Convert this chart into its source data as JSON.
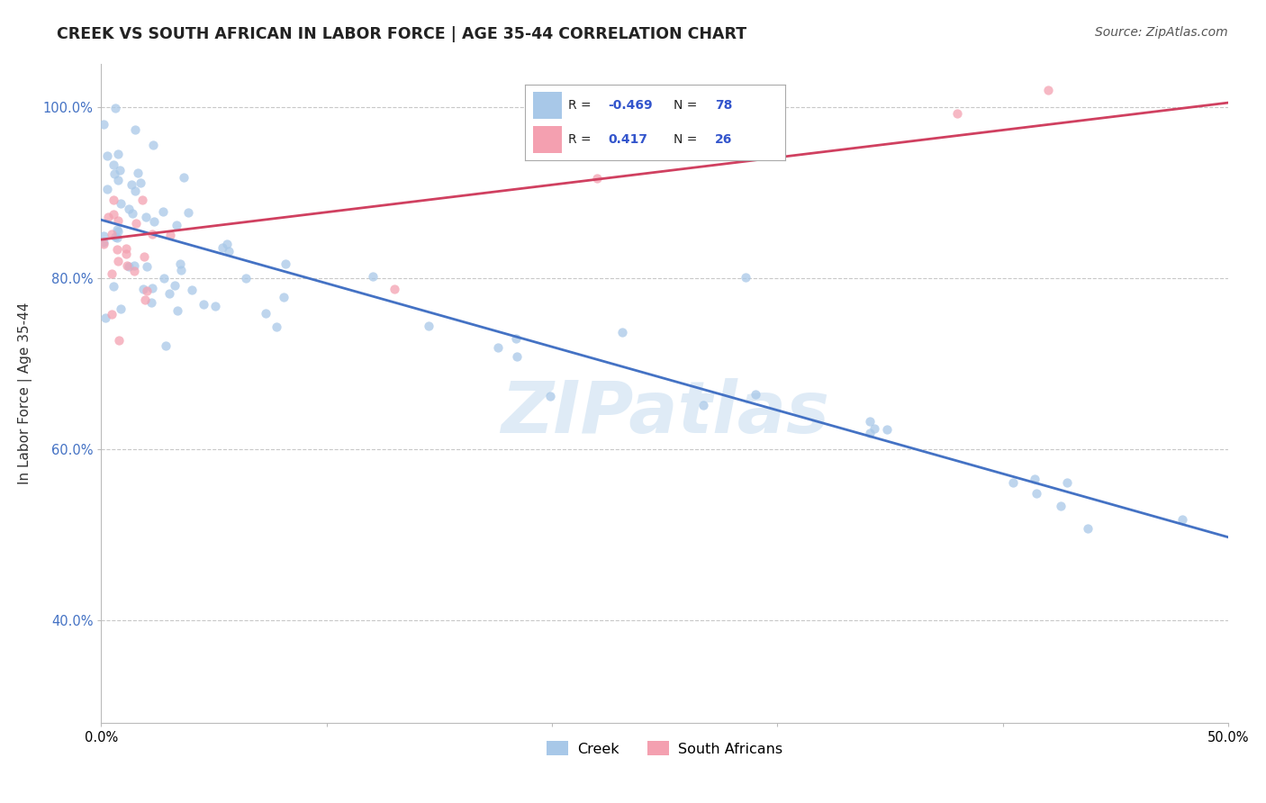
{
  "title": "CREEK VS SOUTH AFRICAN IN LABOR FORCE | AGE 35-44 CORRELATION CHART",
  "source": "Source: ZipAtlas.com",
  "ylabel": "In Labor Force | Age 35-44",
  "xlim": [
    0.0,
    0.5
  ],
  "ylim": [
    0.28,
    1.05
  ],
  "xtick_vals": [
    0.0,
    0.1,
    0.2,
    0.3,
    0.4,
    0.5
  ],
  "xticklabels": [
    "0.0%",
    "",
    "",
    "",
    "",
    "50.0%"
  ],
  "ytick_vals": [
    0.4,
    0.6,
    0.8,
    1.0
  ],
  "yticklabels": [
    "40.0%",
    "60.0%",
    "80.0%",
    "100.0%"
  ],
  "creek_R": -0.469,
  "creek_N": 78,
  "sa_R": 0.417,
  "sa_N": 26,
  "creek_color": "#a8c8e8",
  "sa_color": "#f4a0b0",
  "creek_line_color": "#4472c4",
  "sa_line_color": "#d04060",
  "creek_line_x": [
    0.0,
    0.5
  ],
  "creek_line_y": [
    0.868,
    0.497
  ],
  "sa_line_x": [
    0.0,
    0.5
  ],
  "sa_line_y": [
    0.845,
    1.005
  ],
  "background_color": "#ffffff",
  "grid_color": "#c8c8c8",
  "title_fontsize": 12.5,
  "axis_fontsize": 11,
  "tick_fontsize": 10.5,
  "source_fontsize": 10,
  "marker_size": 55
}
